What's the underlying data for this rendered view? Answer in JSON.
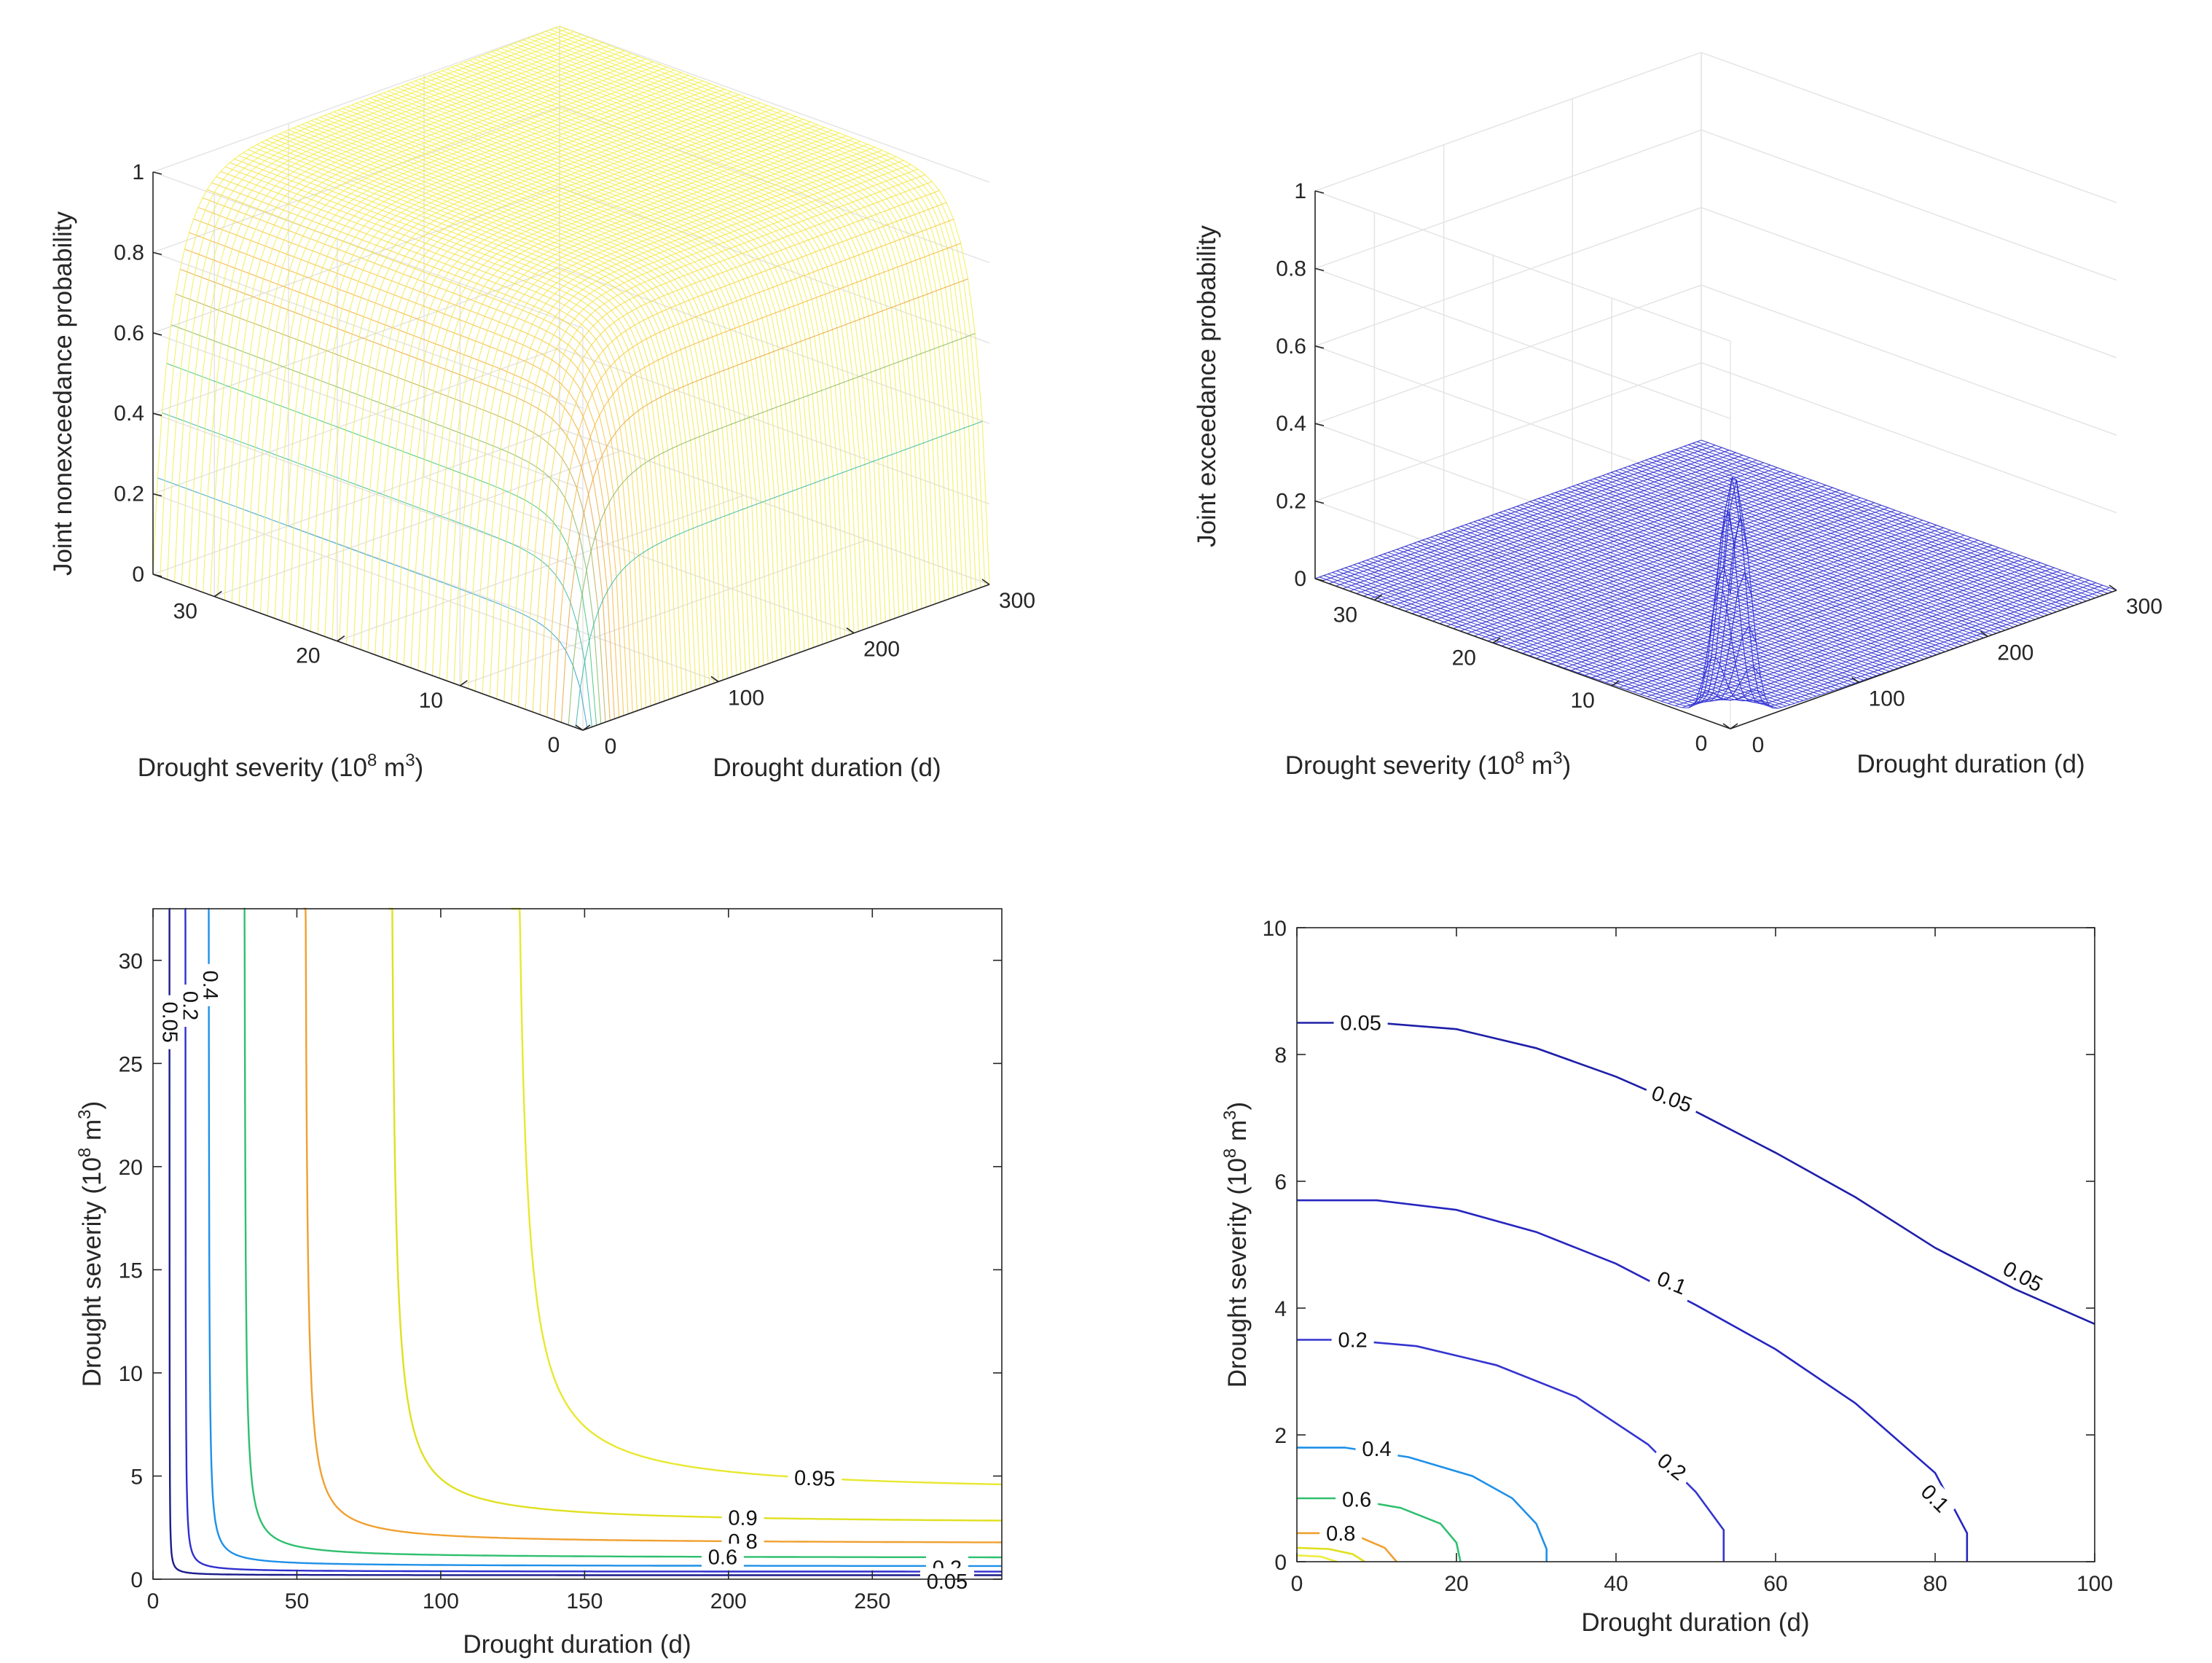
{
  "chart_data": [
    {
      "id": "joint-nonexceedance-surface",
      "type": "surface3d",
      "zlabel": "Joint nonexceedance probability",
      "xlabel": "Drought duration (d)",
      "ylabel_main": "Drought severity (10",
      "ylabel_exp1": "8",
      "ylabel_mid": " m",
      "ylabel_exp2": "3",
      "ylabel_end": ")",
      "xlim": [
        0,
        300
      ],
      "ylim": [
        0,
        35
      ],
      "zlim": [
        0,
        1
      ],
      "xticks": [
        "0",
        "100",
        "200",
        "300"
      ],
      "yticks": [
        "0",
        "10",
        "20",
        "30"
      ],
      "zticks": [
        "0",
        "0.2",
        "0.4",
        "0.6",
        "0.8",
        "1"
      ],
      "colormap": [
        "#3b3bd8",
        "#2aa6d6",
        "#3ec77a",
        "#f5a43a",
        "#f2f24a"
      ]
    },
    {
      "id": "joint-exceedance-surface",
      "type": "surface3d",
      "zlabel": "Joint exceedance probability",
      "xlabel": "Drought duration (d)",
      "ylabel_main": "Drought severity (10",
      "ylabel_exp1": "8",
      "ylabel_mid": " m",
      "ylabel_exp2": "3",
      "ylabel_end": ")",
      "xlim": [
        0,
        300
      ],
      "ylim": [
        0,
        35
      ],
      "zlim": [
        0,
        1
      ],
      "xticks": [
        "0",
        "100",
        "200",
        "300"
      ],
      "yticks": [
        "0",
        "10",
        "20",
        "30"
      ],
      "zticks": [
        "0",
        "0.2",
        "0.4",
        "0.6",
        "0.8",
        "1"
      ],
      "peak_value": 0.63
    },
    {
      "id": "joint-nonexceedance-contour",
      "type": "contour",
      "xlabel": "Drought duration (d)",
      "ylabel_main": "Drought severity (10",
      "ylabel_exp1": "8",
      "ylabel_mid": " m",
      "ylabel_exp2": "3",
      "ylabel_end": ")",
      "xlim": [
        0,
        295
      ],
      "ylim": [
        0,
        32.5
      ],
      "xticks": [
        "0",
        "50",
        "100",
        "150",
        "200",
        "250"
      ],
      "yticks": [
        "0",
        "5",
        "10",
        "15",
        "20",
        "25",
        "30"
      ],
      "levels": [
        {
          "value": 0.05,
          "label": "0.05",
          "d": 5.7,
          "s": 0.19,
          "color": "#1c1c8c"
        },
        {
          "value": 0.2,
          "label": "0.2",
          "d": 11.2,
          "s": 0.36,
          "color": "#2f2fd0"
        },
        {
          "value": 0.4,
          "label": "0.4",
          "d": 19.2,
          "s": 0.62,
          "color": "#1e90e8"
        },
        {
          "value": 0.6,
          "label": "0.6",
          "d": 31.5,
          "s": 1.02,
          "color": "#2fbf6f"
        },
        {
          "value": 0.8,
          "label": "0.8",
          "d": 52.4,
          "s": 1.7,
          "color": "#f0a030"
        },
        {
          "value": 0.9,
          "label": "0.9",
          "d": 81.8,
          "s": 2.65,
          "color": "#e0e020"
        },
        {
          "value": 0.95,
          "label": "0.95",
          "d": 124.5,
          "s": 4.1,
          "color": "#e8e830"
        }
      ]
    },
    {
      "id": "joint-exceedance-contour",
      "type": "contour",
      "xlabel": "Drought duration (d)",
      "ylabel_main": "Drought severity (10",
      "ylabel_exp1": "8",
      "ylabel_mid": " m",
      "ylabel_exp2": "3",
      "ylabel_end": ")",
      "xlim": [
        0,
        100
      ],
      "ylim": [
        0,
        10
      ],
      "xticks": [
        "0",
        "20",
        "40",
        "60",
        "80",
        "100"
      ],
      "yticks": [
        "0",
        "2",
        "4",
        "6",
        "8",
        "10"
      ],
      "levels": [
        {
          "value": 0.05,
          "label": "0.05",
          "color": "#1e1ea8",
          "points": [
            [
              0,
              8.5
            ],
            [
              10,
              8.5
            ],
            [
              20,
              8.4
            ],
            [
              30,
              8.1
            ],
            [
              40,
              7.65
            ],
            [
              50,
              7.1
            ],
            [
              60,
              6.45
            ],
            [
              70,
              5.75
            ],
            [
              80,
              4.95
            ],
            [
              90,
              4.3
            ],
            [
              100,
              3.75
            ]
          ]
        },
        {
          "value": 0.1,
          "label": "0.1",
          "color": "#2626c0",
          "points": [
            [
              0,
              5.7
            ],
            [
              10,
              5.7
            ],
            [
              20,
              5.55
            ],
            [
              30,
              5.2
            ],
            [
              40,
              4.7
            ],
            [
              50,
              4.05
            ],
            [
              60,
              3.35
            ],
            [
              70,
              2.5
            ],
            [
              80,
              1.4
            ],
            [
              84,
              0.45
            ],
            [
              84,
              0
            ]
          ]
        },
        {
          "value": 0.2,
          "label": "0.2",
          "color": "#3434d0",
          "points": [
            [
              0,
              3.5
            ],
            [
              6,
              3.5
            ],
            [
              15,
              3.4
            ],
            [
              25,
              3.1
            ],
            [
              35,
              2.6
            ],
            [
              44,
              1.85
            ],
            [
              50,
              1.1
            ],
            [
              53.5,
              0.5
            ],
            [
              53.5,
              0
            ]
          ]
        },
        {
          "value": 0.4,
          "label": "0.4",
          "color": "#1e90e8",
          "points": [
            [
              0,
              1.8
            ],
            [
              6,
              1.8
            ],
            [
              14,
              1.65
            ],
            [
              22,
              1.35
            ],
            [
              27,
              1.0
            ],
            [
              30,
              0.6
            ],
            [
              31.3,
              0.2
            ],
            [
              31.3,
              0
            ]
          ]
        },
        {
          "value": 0.6,
          "label": "0.6",
          "color": "#2fbf6f",
          "points": [
            [
              0,
              1.0
            ],
            [
              6,
              1.0
            ],
            [
              13,
              0.85
            ],
            [
              18,
              0.6
            ],
            [
              20,
              0.3
            ],
            [
              20.5,
              0
            ]
          ]
        },
        {
          "value": 0.8,
          "label": "0.8",
          "color": "#f0a030",
          "points": [
            [
              0,
              0.45
            ],
            [
              4,
              0.45
            ],
            [
              8,
              0.38
            ],
            [
              11,
              0.22
            ],
            [
              12.5,
              0
            ]
          ]
        },
        {
          "value": 0.9,
          "label": "",
          "color": "#e0e020",
          "points": [
            [
              0,
              0.22
            ],
            [
              4,
              0.2
            ],
            [
              7,
              0.12
            ],
            [
              8.5,
              0
            ]
          ]
        },
        {
          "value": 0.95,
          "label": "",
          "color": "#eded40",
          "points": [
            [
              0,
              0.1
            ],
            [
              3,
              0.08
            ],
            [
              5,
              0
            ]
          ]
        }
      ]
    }
  ]
}
